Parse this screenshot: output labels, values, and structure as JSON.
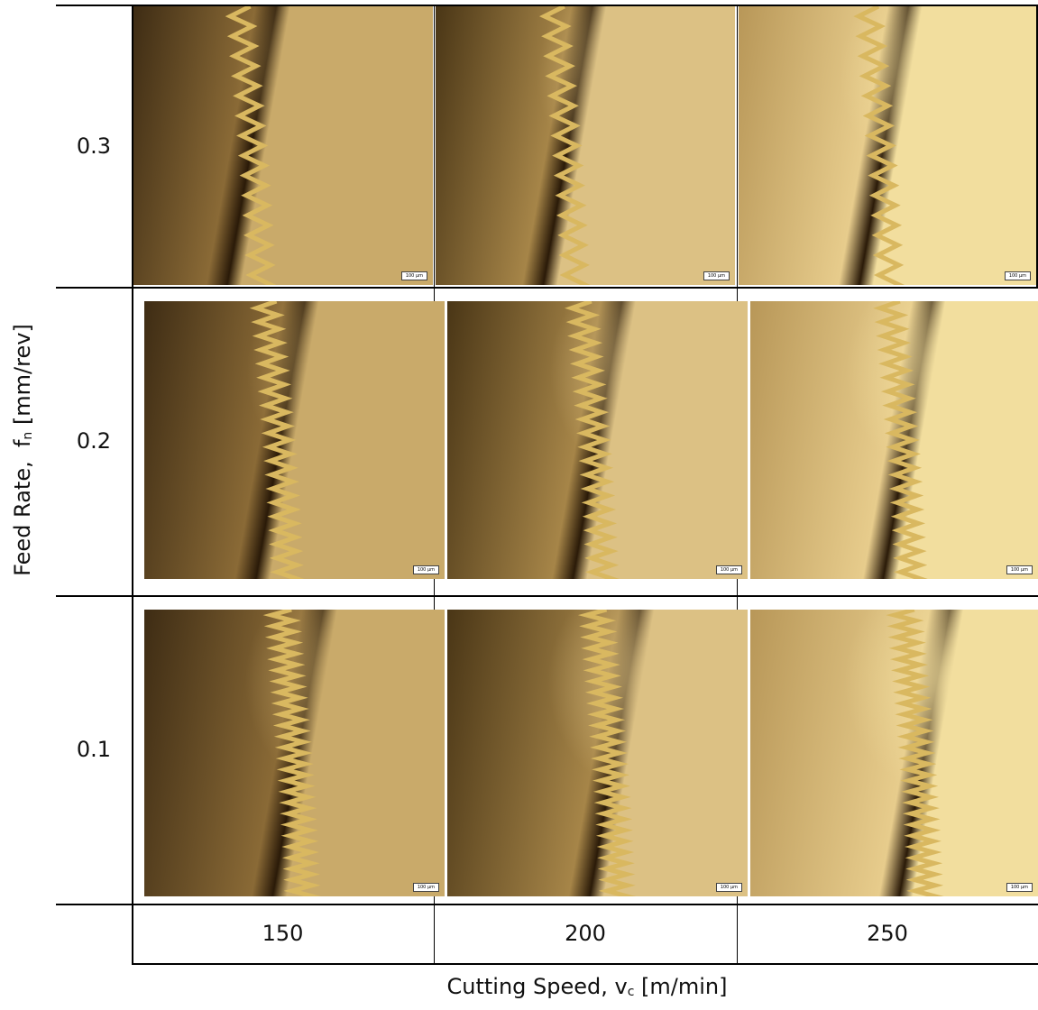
{
  "y_axis_label": {
    "text": "Feed Rate,  f",
    "subscript": "n",
    "unit": " [mm/rev]"
  },
  "x_axis_label": {
    "text": "Cutting Speed, v",
    "subscript": "c",
    "unit": " [m/min]"
  },
  "rows": [
    "0.3",
    "0.2",
    "0.1"
  ],
  "columns": [
    "150",
    "200",
    "250"
  ],
  "scale_bar": "100 µm"
}
